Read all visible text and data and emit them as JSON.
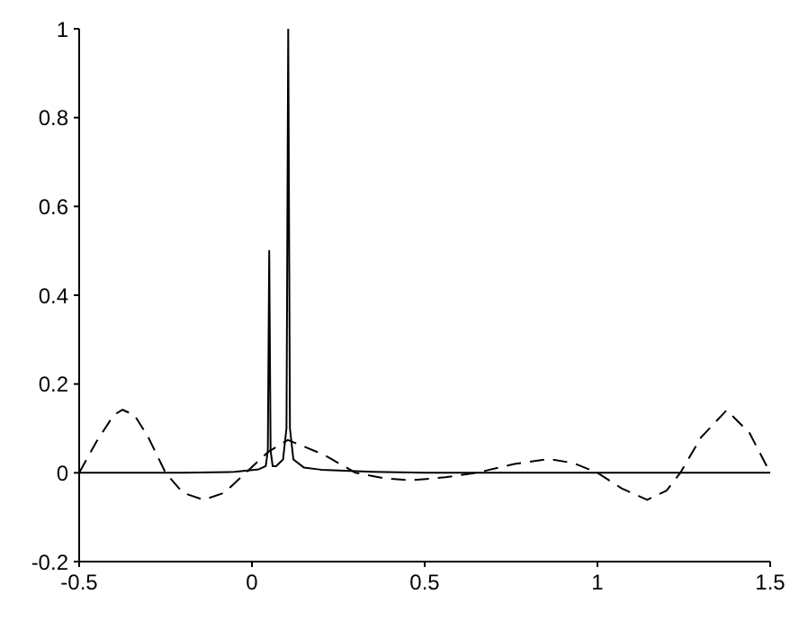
{
  "chart_data": {
    "type": "line",
    "xlim": [
      -0.5,
      1.5
    ],
    "xticks": [
      -0.5,
      0,
      0.5,
      1,
      1.5
    ],
    "ylim": [
      -0.2,
      1
    ],
    "yticks": [
      -0.2,
      0,
      0.2,
      0.4,
      0.6,
      0.8,
      1
    ],
    "marker": "none",
    "series": [
      {
        "color": "#000000",
        "line_style": "solid",
        "x": [
          -0.5,
          -0.2,
          -0.05,
          0.02,
          0.04,
          0.046,
          0.05,
          0.054,
          0.06,
          0.07,
          0.09,
          0.1,
          0.105,
          0.11,
          0.12,
          0.15,
          0.2,
          0.25,
          0.35,
          0.5,
          1,
          1.5
        ],
        "values": [
          0,
          0,
          0.002,
          0.008,
          0.015,
          0.05,
          0.5,
          0.05,
          0.015,
          0.015,
          0.03,
          0.1,
          1,
          0.1,
          0.03,
          0.012,
          0.007,
          0.005,
          0.002,
          0,
          0,
          0
        ]
      },
      {
        "color": "#000000",
        "line_style": "dashed",
        "x": [
          -0.5,
          -0.45,
          -0.4,
          -0.375,
          -0.34,
          -0.3,
          -0.25,
          -0.2,
          -0.14,
          -0.08,
          -0.018,
          0.047,
          0.104,
          0.21,
          0.3,
          0.38,
          0.46,
          0.56,
          0.65,
          0.76,
          0.86,
          0.93,
          1.0,
          1.07,
          1.144,
          1.2,
          1.24,
          1.3,
          1.374,
          1.44,
          1.5
        ],
        "values": [
          0,
          0.07,
          0.13,
          0.142,
          0.13,
          0.08,
          0,
          -0.045,
          -0.061,
          -0.045,
          0,
          0.047,
          0.074,
          0.04,
          0,
          -0.012,
          -0.017,
          -0.01,
          0,
          0.02,
          0.031,
          0.022,
          0,
          -0.035,
          -0.061,
          -0.04,
          0,
          0.08,
          0.141,
          0.09,
          0
        ]
      }
    ]
  }
}
